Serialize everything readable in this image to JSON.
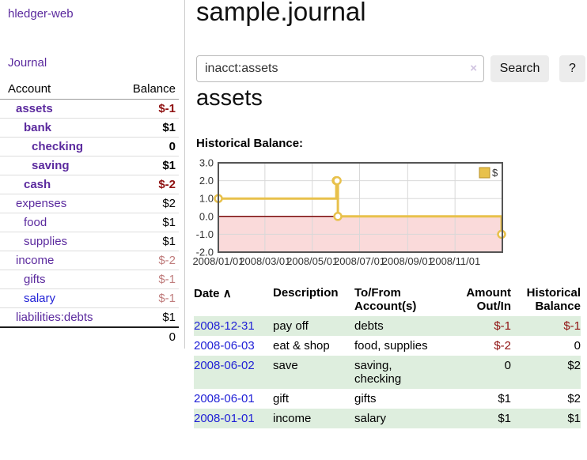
{
  "colors": {
    "purple_link": "#5b2a9e",
    "blue_link": "#1f1fd6",
    "negative_strong": "#8f1111",
    "negative_soft": "#c07d7d",
    "row_stripe_green": "#deeede",
    "chart_line_gold": "#e8c14b",
    "chart_negative_pink": "#fadada",
    "chart_zero_line": "#7a0b0b"
  },
  "sidebar": {
    "app_title": "hledger-web",
    "journal_link": "Journal",
    "accounts_table": {
      "headers": {
        "account": "Account",
        "balance": "Balance"
      },
      "rows": [
        {
          "name": "assets",
          "balance": "$-1",
          "indent": 1,
          "bold": true,
          "balance_style": "neg-strong"
        },
        {
          "name": "bank",
          "balance": "$1",
          "indent": 2,
          "bold": true,
          "balance_style": "pos"
        },
        {
          "name": "checking",
          "balance": "0",
          "indent": 3,
          "bold": true,
          "balance_style": "pos"
        },
        {
          "name": "saving",
          "balance": "$1",
          "indent": 3,
          "bold": true,
          "balance_style": "pos"
        },
        {
          "name": "cash",
          "balance": "$-2",
          "indent": 2,
          "bold": true,
          "balance_style": "neg-strong"
        },
        {
          "name": "expenses",
          "balance": "$2",
          "indent": 1,
          "bold": false,
          "balance_style": "pos"
        },
        {
          "name": "food",
          "balance": "$1",
          "indent": 2,
          "bold": false,
          "balance_style": "pos"
        },
        {
          "name": "supplies",
          "balance": "$1",
          "indent": 2,
          "bold": false,
          "balance_style": "pos"
        },
        {
          "name": "income",
          "balance": "$-2",
          "indent": 1,
          "bold": false,
          "balance_style": "neg-soft"
        },
        {
          "name": "gifts",
          "balance": "$-1",
          "indent": 2,
          "bold": false,
          "balance_style": "neg-soft"
        },
        {
          "name": "salary",
          "balance": "$-1",
          "indent": 2,
          "bold": false,
          "balance_style": "neg-soft",
          "link_color": "blue"
        },
        {
          "name": "liabilities:debts",
          "balance": "$1",
          "indent": 1,
          "bold": false,
          "balance_style": "pos"
        }
      ],
      "total": "0"
    }
  },
  "header": {
    "title": "sample.journal"
  },
  "search": {
    "value": "inacct:assets",
    "clear_icon": "×",
    "search_button": "Search",
    "help_button": "?"
  },
  "account_page": {
    "heading": "assets",
    "chart_label": "Historical Balance:"
  },
  "chart_data": {
    "type": "line",
    "title": "Historical Balance:",
    "legend": [
      {
        "label": "$",
        "color": "#e8c14b"
      }
    ],
    "ylim": [
      -2,
      3
    ],
    "x_range_days": [
      0,
      366
    ],
    "y_ticks": [
      {
        "value": 3,
        "label": "3.0"
      },
      {
        "value": 2,
        "label": "2.0"
      },
      {
        "value": 1,
        "label": "1.0"
      },
      {
        "value": 0,
        "label": "0.0"
      },
      {
        "value": -1,
        "label": "-1.0"
      },
      {
        "value": -2,
        "label": "-2.0"
      }
    ],
    "x_ticks": [
      {
        "day": 0,
        "label": "2008/01/01"
      },
      {
        "day": 60,
        "label": "2008/03/01"
      },
      {
        "day": 121,
        "label": "2008/05/01"
      },
      {
        "day": 182,
        "label": "2008/07/01"
      },
      {
        "day": 244,
        "label": "2008/09/01"
      },
      {
        "day": 305,
        "label": "2008/11/01"
      }
    ],
    "series": [
      {
        "name": "$",
        "step": true,
        "points": [
          {
            "date": "2008-01-01",
            "day": 0,
            "value": 1
          },
          {
            "date": "2008-06-01",
            "day": 152,
            "value": 2
          },
          {
            "date": "2008-06-02",
            "day": 153,
            "value": 2
          },
          {
            "date": "2008-06-03",
            "day": 154,
            "value": 0
          },
          {
            "date": "2008-12-31",
            "day": 365,
            "value": -1
          }
        ]
      }
    ],
    "colors": {
      "line": "#e8c14b",
      "marker_fill": "#ffffff",
      "legend_border": "#b8912a",
      "negative_region": "#fadada",
      "zero_line": "#7a0b0b",
      "grid": "#d8d8d8",
      "border": "#555555"
    }
  },
  "register_table": {
    "headers": {
      "date": "Date",
      "sort_icon": "∧",
      "description": "Description",
      "accounts": "To/From Account(s)",
      "amount": "Amount Out/In",
      "balance": "Historical Balance"
    },
    "rows": [
      {
        "date": "2008-12-31",
        "description": "pay off",
        "accounts": "debts",
        "amount": "$-1",
        "balance": "$-1"
      },
      {
        "date": "2008-06-03",
        "description": "eat & shop",
        "accounts": "food, supplies",
        "amount": "$-2",
        "balance": "0"
      },
      {
        "date": "2008-06-02",
        "description": "save",
        "accounts": "saving, checking",
        "amount": "0",
        "balance": "$2"
      },
      {
        "date": "2008-06-01",
        "description": "gift",
        "accounts": "gifts",
        "amount": "$1",
        "balance": "$2"
      },
      {
        "date": "2008-01-01",
        "description": "income",
        "accounts": "salary",
        "amount": "$1",
        "balance": "$1"
      }
    ]
  }
}
